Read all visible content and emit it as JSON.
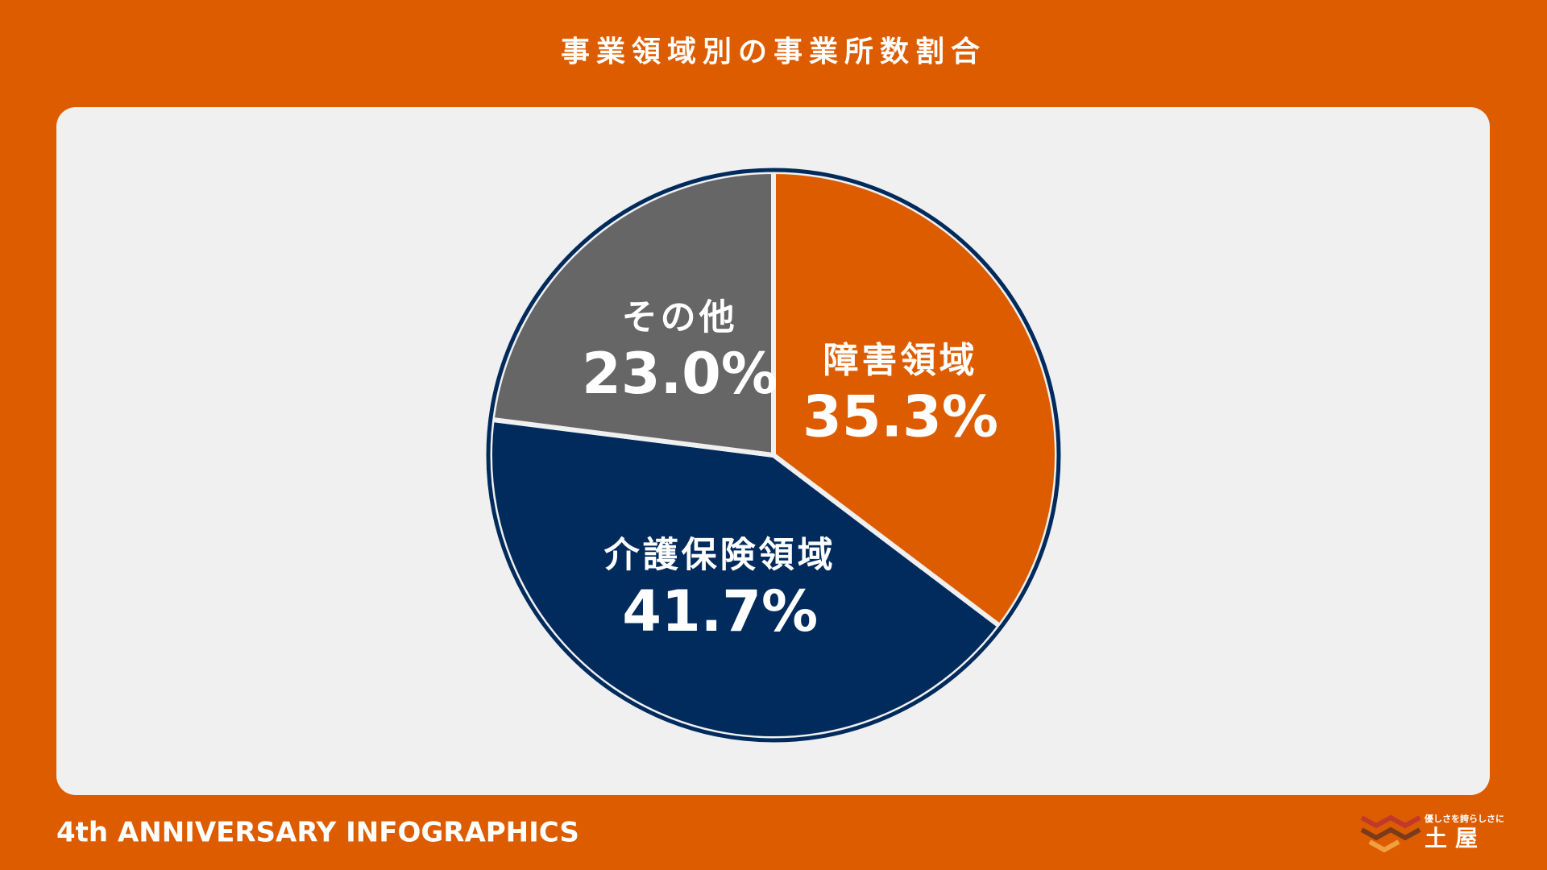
{
  "chart_data": {
    "type": "pie",
    "title": "事業領域別の事業所数割合",
    "categories": [
      "障害領域",
      "介護保険領域",
      "その他"
    ],
    "values": [
      35.3,
      41.7,
      23.0
    ],
    "value_labels": [
      "35.3%",
      "41.7%",
      "23.0%"
    ],
    "colors": [
      "#dd5c00",
      "#002b5c",
      "#666666"
    ]
  },
  "footer": "4th ANNIVERSARY INFOGRAPHICS",
  "logo": {
    "tagline": "優しさを誇らしさに",
    "name": "土屋"
  }
}
